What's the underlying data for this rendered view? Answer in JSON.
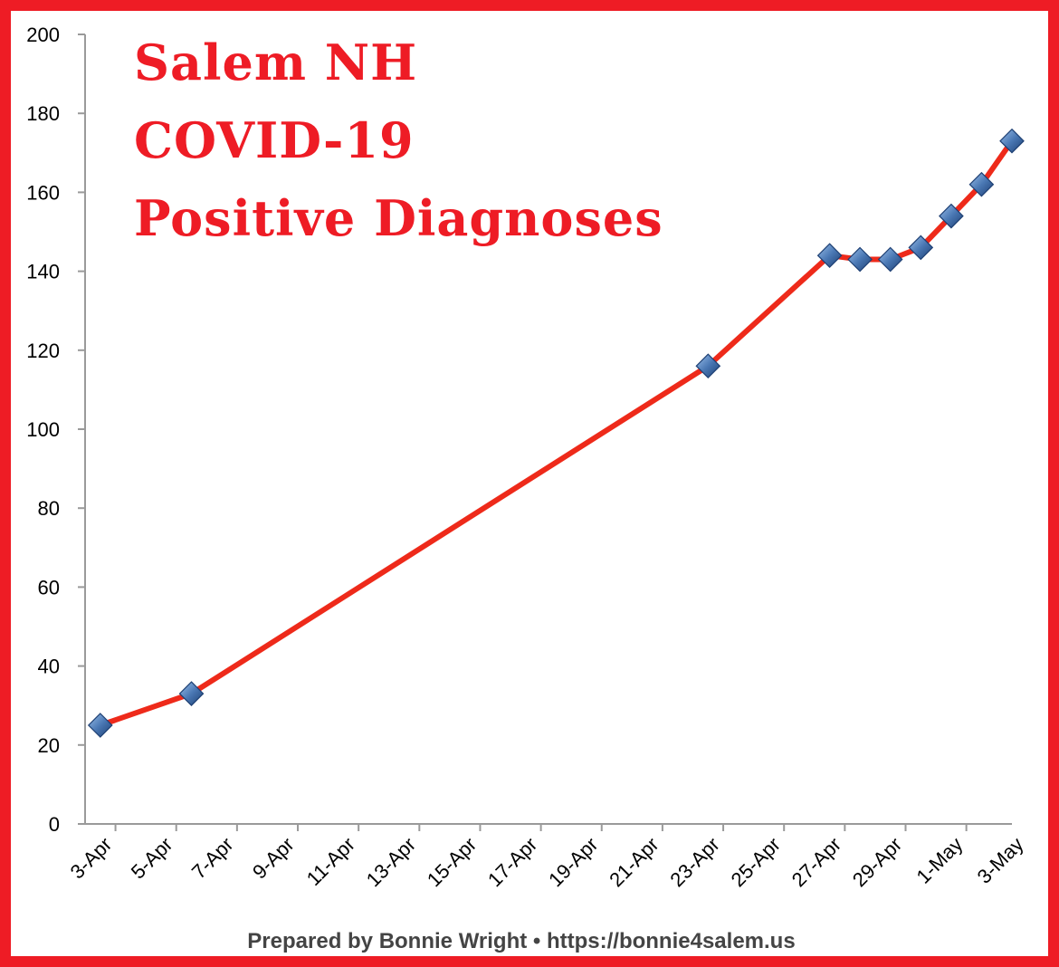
{
  "chart_data": {
    "type": "line",
    "title_lines": [
      "Salem NH",
      "COVID-19",
      "Positive Diagnoses"
    ],
    "xlabel": "",
    "ylabel": "",
    "ylim": [
      0,
      200
    ],
    "y_ticks": [
      0,
      20,
      40,
      60,
      80,
      100,
      120,
      140,
      160,
      180,
      200
    ],
    "x_tick_labels": [
      "3-Apr",
      "5-Apr",
      "7-Apr",
      "9-Apr",
      "11-Apr",
      "13-Apr",
      "15-Apr",
      "17-Apr",
      "19-Apr",
      "21-Apr",
      "23-Apr",
      "25-Apr",
      "27-Apr",
      "29-Apr",
      "1-May",
      "3-May"
    ],
    "grid": false,
    "legend": "none",
    "series": [
      {
        "x": [
          "3-Apr",
          "6-Apr",
          "23-Apr",
          "27-Apr",
          "28-Apr",
          "29-Apr",
          "30-Apr",
          "1-May",
          "2-May",
          "3-May"
        ],
        "values": [
          25,
          33,
          116,
          144,
          143,
          143,
          146,
          154,
          162,
          173
        ]
      }
    ],
    "colors": {
      "line": "#ee2a1a",
      "marker": "#4a78b4",
      "frame": "#ee1c25",
      "title": "#ee1c25"
    },
    "marker": "diamond"
  },
  "footer": {
    "credit": "Prepared by Bonnie Wright • https://bonnie4salem.us"
  }
}
